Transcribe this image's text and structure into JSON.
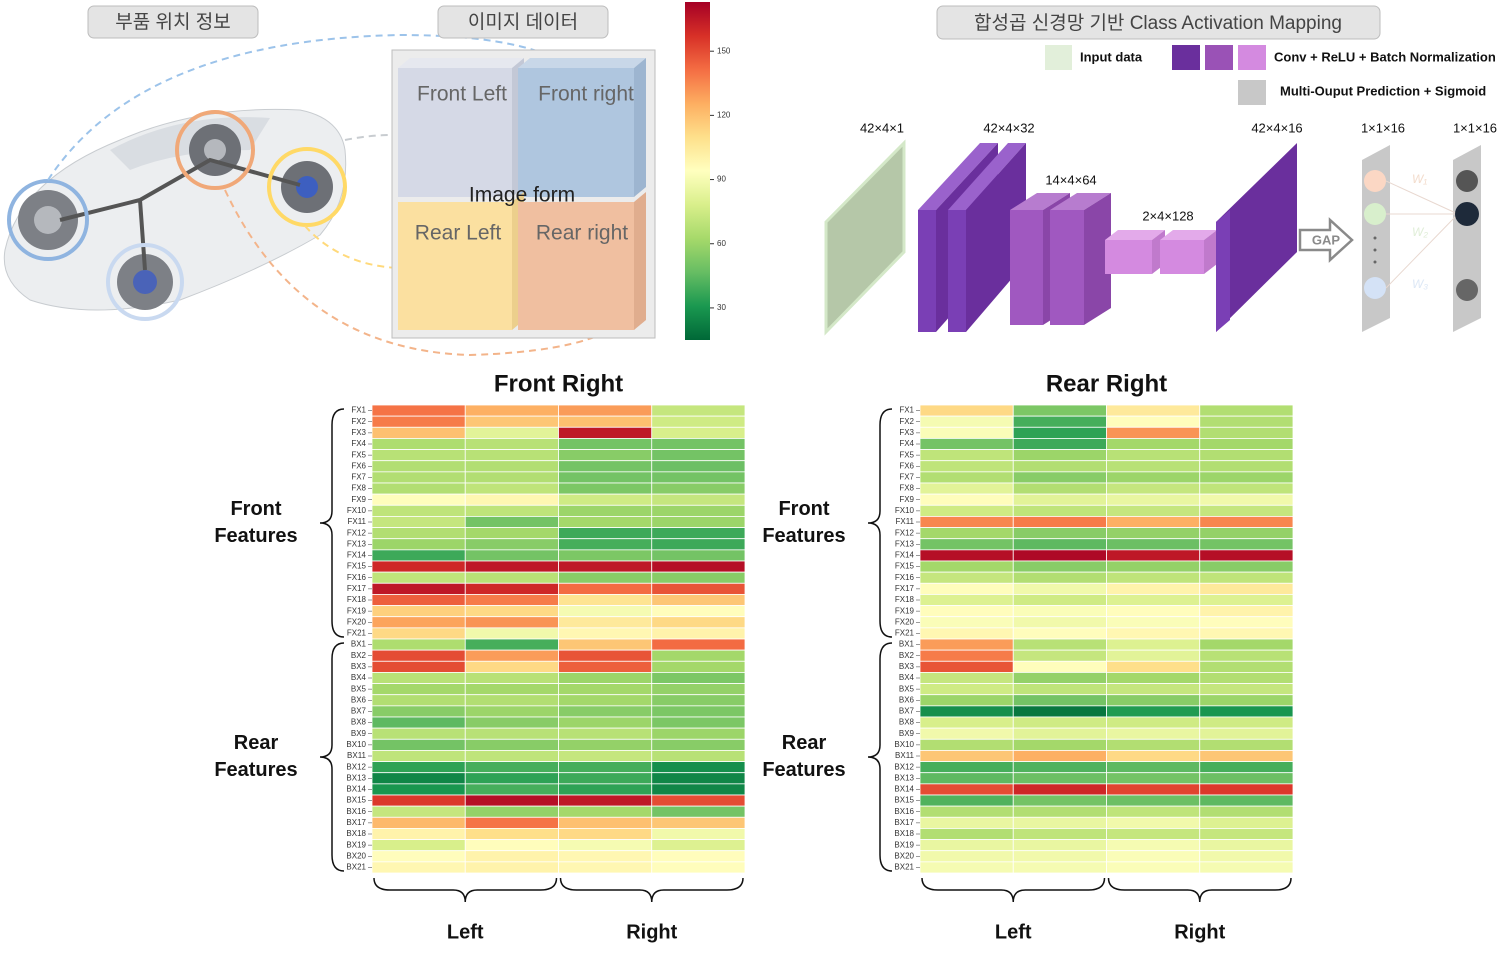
{
  "location_header": "부품 위치 정보",
  "image_panel": {
    "header": "이미지 데이터",
    "front_left": "Front Left",
    "front_right": "Front right",
    "center": "Image form",
    "rear_left": "Rear Left",
    "rear_right": "Rear right"
  },
  "colorbar": {
    "lim": [
      15,
      173
    ],
    "ticks": [
      30,
      60,
      90,
      120,
      150
    ],
    "colormap": [
      "#006837",
      "#1a9850",
      "#66bd63",
      "#a6d96a",
      "#d9ef8b",
      "#ffffbf",
      "#fee08b",
      "#fdae61",
      "#f46d43",
      "#d73027",
      "#a50026"
    ]
  },
  "cnn": {
    "header": "합성곱 신경망 기반 Class Activation Mapping",
    "legend": {
      "input": "Input data",
      "conv": "Conv + ReLU + Batch Normalization",
      "output": "Multi-Ouput Prediction + Sigmoid"
    },
    "layers": [
      "42×4×1",
      "42×4×32",
      "14×4×64",
      "2×4×128",
      "42×4×16",
      "1×1×16",
      "1×1×16"
    ],
    "gap": "GAP",
    "weights": [
      "W₁",
      "W₂",
      "W₃"
    ]
  },
  "heatmaps": [
    {
      "title": "Front Right",
      "group_labels": [
        "Front Features",
        "Rear Features"
      ],
      "column_groups": [
        "Left",
        "Right"
      ],
      "rows": [
        "FX1",
        "FX2",
        "FX3",
        "FX4",
        "FX5",
        "FX6",
        "FX7",
        "FX8",
        "FX9",
        "FX10",
        "FX11",
        "FX12",
        "FX13",
        "FX14",
        "FX15",
        "FX16",
        "FX17",
        "FX18",
        "FX19",
        "FX20",
        "FX21",
        "BX1",
        "BX2",
        "BX3",
        "BX4",
        "BX5",
        "BX6",
        "BX7",
        "BX8",
        "BX9",
        "BX10",
        "BX11",
        "BX12",
        "BX13",
        "BX14",
        "BX15",
        "BX16",
        "BX17",
        "BX18",
        "BX19",
        "BX20",
        "BX21"
      ],
      "values": [
        [
          140,
          125,
          130,
          72
        ],
        [
          138,
          118,
          120,
          75
        ],
        [
          120,
          82,
          165,
          78
        ],
        [
          65,
          68,
          50,
          50
        ],
        [
          68,
          68,
          55,
          50
        ],
        [
          66,
          66,
          50,
          48
        ],
        [
          66,
          66,
          50,
          50
        ],
        [
          66,
          70,
          52,
          55
        ],
        [
          95,
          98,
          75,
          72
        ],
        [
          70,
          70,
          60,
          60
        ],
        [
          72,
          50,
          62,
          60
        ],
        [
          66,
          62,
          38,
          38
        ],
        [
          60,
          55,
          40,
          38
        ],
        [
          38,
          50,
          52,
          50
        ],
        [
          160,
          165,
          165,
          168
        ],
        [
          70,
          68,
          55,
          55
        ],
        [
          165,
          160,
          142,
          148
        ],
        [
          145,
          138,
          108,
          118
        ],
        [
          115,
          112,
          90,
          95
        ],
        [
          128,
          132,
          105,
          112
        ],
        [
          112,
          88,
          98,
          100
        ],
        [
          65,
          40,
          118,
          142
        ],
        [
          150,
          130,
          148,
          62
        ],
        [
          150,
          112,
          145,
          62
        ],
        [
          68,
          68,
          60,
          52
        ],
        [
          62,
          62,
          62,
          58
        ],
        [
          66,
          66,
          62,
          55
        ],
        [
          55,
          60,
          55,
          52
        ],
        [
          45,
          55,
          60,
          52
        ],
        [
          68,
          68,
          68,
          60
        ],
        [
          50,
          55,
          58,
          55
        ],
        [
          70,
          70,
          72,
          68
        ],
        [
          35,
          40,
          40,
          28
        ],
        [
          25,
          35,
          38,
          25
        ],
        [
          30,
          40,
          35,
          25
        ],
        [
          155,
          168,
          165,
          150
        ],
        [
          72,
          58,
          62,
          50
        ],
        [
          122,
          140,
          120,
          118
        ],
        [
          100,
          110,
          112,
          88
        ],
        [
          78,
          95,
          90,
          80
        ],
        [
          95,
          100,
          98,
          95
        ],
        [
          98,
          100,
          98,
          95
        ]
      ]
    },
    {
      "title": "Rear Right",
      "group_labels": [
        "Front Features",
        "Rear Features"
      ],
      "column_groups": [
        "Left",
        "Right"
      ],
      "rows": [
        "FX1",
        "FX2",
        "FX3",
        "FX4",
        "FX5",
        "FX6",
        "FX7",
        "FX8",
        "FX9",
        "FX10",
        "FX11",
        "FX12",
        "FX13",
        "FX14",
        "FX15",
        "FX16",
        "FX17",
        "FX18",
        "FX19",
        "FX20",
        "FX21",
        "BX1",
        "BX2",
        "BX3",
        "BX4",
        "BX5",
        "BX6",
        "BX7",
        "BX8",
        "BX9",
        "BX10",
        "BX11",
        "BX12",
        "BX13",
        "BX14",
        "BX15",
        "BX16",
        "BX17",
        "BX18",
        "BX19",
        "BX20",
        "BX21"
      ],
      "values": [
        [
          112,
          52,
          105,
          66
        ],
        [
          90,
          40,
          95,
          66
        ],
        [
          92,
          35,
          132,
          66
        ],
        [
          50,
          38,
          62,
          62
        ],
        [
          70,
          60,
          68,
          66
        ],
        [
          70,
          66,
          68,
          66
        ],
        [
          66,
          55,
          60,
          60
        ],
        [
          82,
          66,
          72,
          70
        ],
        [
          95,
          82,
          85,
          88
        ],
        [
          75,
          70,
          72,
          72
        ],
        [
          135,
          138,
          125,
          135
        ],
        [
          62,
          55,
          58,
          58
        ],
        [
          50,
          45,
          48,
          50
        ],
        [
          168,
          170,
          165,
          168
        ],
        [
          62,
          55,
          58,
          55
        ],
        [
          72,
          66,
          70,
          70
        ],
        [
          95,
          88,
          100,
          105
        ],
        [
          80,
          75,
          80,
          80
        ],
        [
          95,
          92,
          95,
          100
        ],
        [
          92,
          88,
          92,
          95
        ],
        [
          98,
          95,
          98,
          98
        ],
        [
          130,
          68,
          80,
          62
        ],
        [
          138,
          72,
          82,
          68
        ],
        [
          148,
          95,
          110,
          66
        ],
        [
          72,
          58,
          62,
          66
        ],
        [
          75,
          70,
          72,
          72
        ],
        [
          60,
          50,
          55,
          60
        ],
        [
          28,
          20,
          32,
          30
        ],
        [
          78,
          75,
          75,
          75
        ],
        [
          88,
          82,
          85,
          82
        ],
        [
          66,
          62,
          66,
          66
        ],
        [
          118,
          125,
          112,
          118
        ],
        [
          40,
          42,
          45,
          40
        ],
        [
          45,
          48,
          50,
          48
        ],
        [
          150,
          160,
          152,
          155
        ],
        [
          42,
          50,
          48,
          45
        ],
        [
          66,
          66,
          70,
          66
        ],
        [
          85,
          85,
          88,
          80
        ],
        [
          66,
          70,
          72,
          72
        ],
        [
          85,
          85,
          90,
          85
        ],
        [
          88,
          88,
          92,
          88
        ],
        [
          90,
          90,
          92,
          90
        ]
      ]
    }
  ]
}
